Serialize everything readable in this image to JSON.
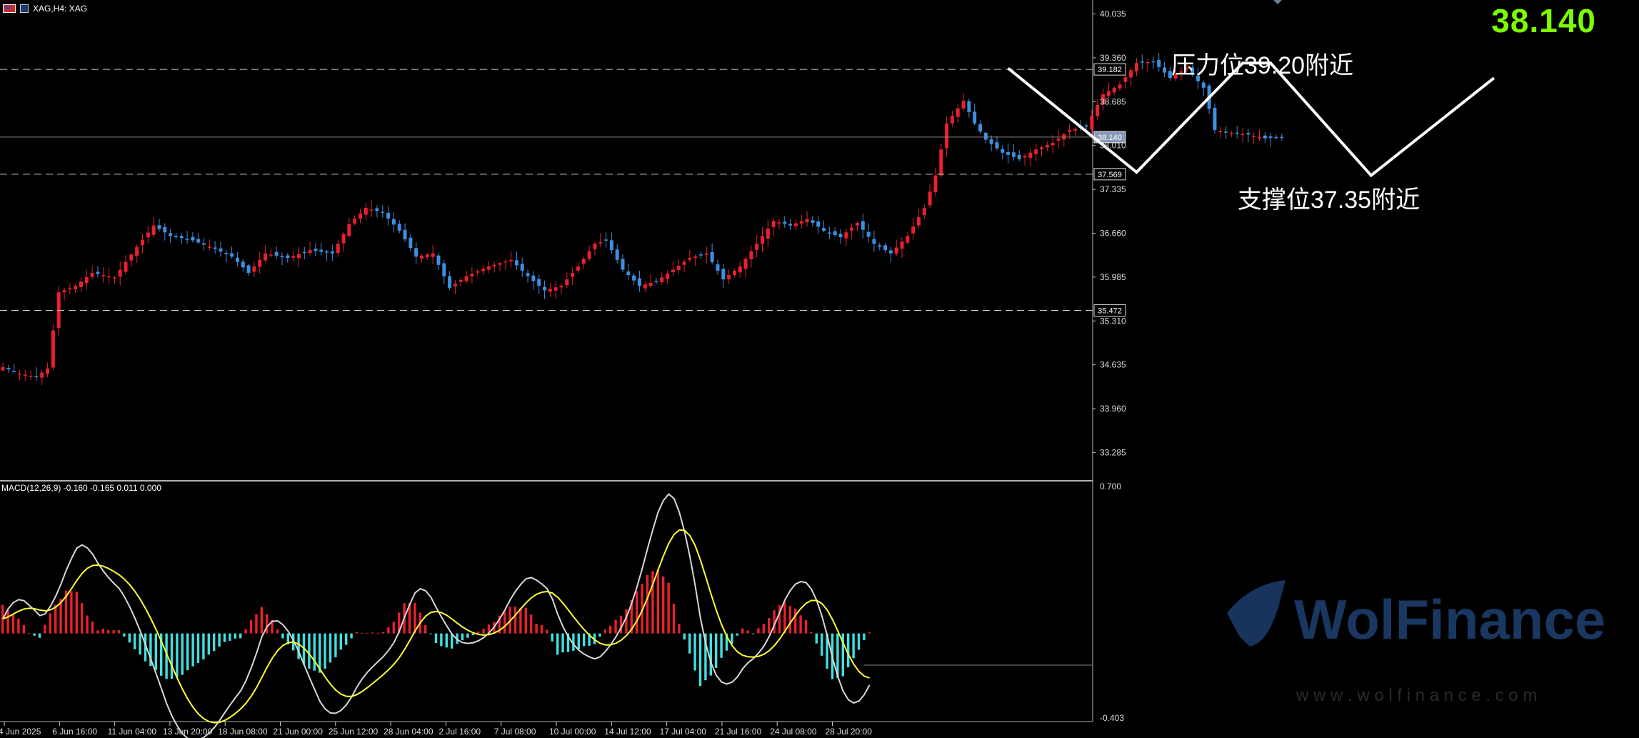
{
  "window": {
    "title": "XAG,H4:  XAG",
    "current_price_display": "38.140"
  },
  "annotations": {
    "resistance": "压力位39.20附近",
    "support": "支撑位37.35附近"
  },
  "watermark": {
    "brand": "WolFinance",
    "url": "w w w . w o l f i n a n c e . c o m"
  },
  "indicator": {
    "label": "MACD(12,26,9) -0.160 -0.165 0.011 0.000"
  },
  "colors": {
    "background": "#000000",
    "bull_candle": "#e8212b",
    "bear_candle": "#3d8fe0",
    "grid_line": "#9a9a9a",
    "price_text": "#7cfc00",
    "macd_hist_pos": "#e8212b",
    "macd_hist_neg": "#40e0e0",
    "macd_line": "#d8d8d8",
    "signal_line": "#ffff33",
    "watermark": "#1b3a66"
  },
  "chart_data": [
    {
      "type": "candlestick",
      "symbol": "XAG",
      "timeframe": "H4",
      "y_range": [
        32.85,
        40.25
      ],
      "price_axis_ticks": [
        "40.035",
        "39.360",
        "38.685",
        "38.010",
        "37.335",
        "36.660",
        "35.985",
        "35.310",
        "34.635",
        "33.960",
        "33.285"
      ],
      "price_axis_tick_values": [
        40.035,
        39.36,
        38.685,
        38.01,
        37.335,
        36.66,
        35.985,
        35.31,
        34.635,
        33.96,
        33.285
      ],
      "horizontal_levels": [
        {
          "value": 39.182,
          "label": "39.182",
          "style": "dashed"
        },
        {
          "value": 38.14,
          "label": "38.140",
          "style": "solid"
        },
        {
          "value": 37.569,
          "label": "37.569",
          "style": "dashed"
        },
        {
          "value": 35.472,
          "label": "35.472",
          "style": "dashed"
        }
      ],
      "x_tick_labels": [
        "4 Jun 2025",
        "6 Jun 16:00",
        "11 Jun 04:00",
        "13 Jun 20:00",
        "18 Jun 08:00",
        "21 Jun 00:00",
        "25 Jun 12:00",
        "28 Jun 04:00",
        "2 Jul 16:00",
        "7 Jul 08:00",
        "10 Jul 00:00",
        "14 Jul 12:00",
        "17 Jul 04:00",
        "21 Jul 16:00",
        "24 Jul 08:00",
        "28 Jul 20:00"
      ],
      "close_anchors": [
        [
          0,
          34.6
        ],
        [
          3,
          34.5
        ],
        [
          6,
          34.45
        ],
        [
          8,
          34.58
        ],
        [
          10,
          35.75
        ],
        [
          13,
          35.85
        ],
        [
          16,
          36.05
        ],
        [
          20,
          35.98
        ],
        [
          24,
          36.45
        ],
        [
          27,
          36.78
        ],
        [
          30,
          36.62
        ],
        [
          34,
          36.55
        ],
        [
          38,
          36.42
        ],
        [
          41,
          36.3
        ],
        [
          44,
          36.05
        ],
        [
          47,
          36.35
        ],
        [
          51,
          36.28
        ],
        [
          55,
          36.4
        ],
        [
          59,
          36.35
        ],
        [
          62,
          36.8
        ],
        [
          65,
          37.05
        ],
        [
          68,
          36.98
        ],
        [
          71,
          36.7
        ],
        [
          74,
          36.3
        ],
        [
          77,
          36.35
        ],
        [
          80,
          35.82
        ],
        [
          83,
          36.0
        ],
        [
          87,
          36.15
        ],
        [
          91,
          36.25
        ],
        [
          94,
          36.0
        ],
        [
          97,
          35.78
        ],
        [
          100,
          35.85
        ],
        [
          103,
          36.15
        ],
        [
          106,
          36.5
        ],
        [
          108,
          36.55
        ],
        [
          111,
          36.1
        ],
        [
          114,
          35.85
        ],
        [
          117,
          35.92
        ],
        [
          120,
          36.1
        ],
        [
          123,
          36.28
        ],
        [
          126,
          36.35
        ],
        [
          129,
          35.95
        ],
        [
          132,
          36.15
        ],
        [
          135,
          36.5
        ],
        [
          138,
          36.85
        ],
        [
          141,
          36.78
        ],
        [
          144,
          36.88
        ],
        [
          147,
          36.7
        ],
        [
          150,
          36.6
        ],
        [
          153,
          36.82
        ],
        [
          156,
          36.5
        ],
        [
          159,
          36.35
        ],
        [
          162,
          36.62
        ],
        [
          165,
          37.05
        ],
        [
          167,
          37.55
        ],
        [
          169,
          38.35
        ],
        [
          172,
          38.7
        ],
        [
          174,
          38.35
        ],
        [
          176,
          38.1
        ],
        [
          179,
          37.9
        ],
        [
          182,
          37.8
        ],
        [
          185,
          37.95
        ],
        [
          188,
          38.05
        ],
        [
          191,
          38.25
        ],
        [
          194,
          38.3
        ],
        [
          197,
          38.8
        ],
        [
          200,
          38.95
        ],
        [
          203,
          39.28
        ],
        [
          206,
          39.3
        ],
        [
          209,
          39.05
        ],
        [
          212,
          39.2
        ],
        [
          215,
          38.9
        ],
        [
          217,
          38.25
        ],
        [
          220,
          38.2
        ],
        [
          223,
          38.18
        ],
        [
          226,
          38.12
        ],
        [
          229,
          38.14
        ]
      ],
      "projection_path_points": [
        {
          "time_index": 180,
          "price": 39.2
        },
        {
          "time_index": 203,
          "price": 37.6
        },
        {
          "time_index": 222,
          "price": 39.28
        },
        {
          "time_index": 227,
          "price": 39.28
        },
        {
          "time_index": 245,
          "price": 37.55
        },
        {
          "time_index": 267,
          "price": 39.05
        }
      ]
    },
    {
      "type": "macd",
      "params": [
        12,
        26,
        9
      ],
      "y_range": [
        -0.403,
        0.7
      ],
      "axis_ticks": [
        "0.700",
        "-0.403"
      ],
      "axis_tick_values": [
        0.7,
        -0.403
      ],
      "histogram_anchors": [
        [
          0,
          0.14
        ],
        [
          3,
          0.07
        ],
        [
          5,
          0.0
        ],
        [
          7,
          -0.02
        ],
        [
          9,
          0.1
        ],
        [
          12,
          0.2
        ],
        [
          14,
          0.2
        ],
        [
          16,
          0.09
        ],
        [
          18,
          0.02
        ],
        [
          22,
          0.02
        ],
        [
          23,
          -0.02
        ],
        [
          27,
          -0.13
        ],
        [
          31,
          -0.22
        ],
        [
          34,
          -0.2
        ],
        [
          38,
          -0.12
        ],
        [
          42,
          -0.04
        ],
        [
          45,
          -0.02
        ],
        [
          47,
          0.06
        ],
        [
          49,
          0.13
        ],
        [
          51,
          0.06
        ],
        [
          53,
          -0.02
        ],
        [
          57,
          -0.15
        ],
        [
          60,
          -0.19
        ],
        [
          62,
          -0.14
        ],
        [
          65,
          -0.05
        ],
        [
          67,
          0.01
        ],
        [
          70,
          0.0
        ],
        [
          72,
          0.01
        ],
        [
          74,
          0.05
        ],
        [
          76,
          0.14
        ],
        [
          78,
          0.15
        ],
        [
          80,
          0.04
        ],
        [
          82,
          -0.05
        ],
        [
          85,
          -0.07
        ],
        [
          88,
          -0.02
        ],
        [
          91,
          0.02
        ],
        [
          93,
          0.06
        ],
        [
          96,
          0.13
        ],
        [
          99,
          0.12
        ],
        [
          101,
          0.05
        ],
        [
          103,
          0.02
        ],
        [
          105,
          -0.1
        ],
        [
          108,
          -0.08
        ],
        [
          110,
          -0.06
        ],
        [
          112,
          -0.05
        ],
        [
          114,
          0.02
        ],
        [
          116,
          0.06
        ],
        [
          118,
          0.11
        ],
        [
          120,
          0.2
        ],
        [
          122,
          0.28
        ],
        [
          124,
          0.31
        ],
        [
          126,
          0.24
        ],
        [
          128,
          0.05
        ],
        [
          130,
          -0.1
        ],
        [
          132,
          -0.25
        ],
        [
          134,
          -0.2
        ],
        [
          136,
          -0.12
        ],
        [
          138,
          -0.05
        ],
        [
          140,
          0.02
        ],
        [
          142,
          0.0
        ],
        [
          144,
          0.04
        ],
        [
          146,
          0.11
        ],
        [
          148,
          0.15
        ],
        [
          150,
          0.12
        ],
        [
          152,
          0.06
        ],
        [
          154,
          -0.05
        ],
        [
          157,
          -0.22
        ],
        [
          159,
          -0.2
        ],
        [
          161,
          -0.12
        ],
        [
          163,
          -0.03
        ],
        [
          164,
          0.01
        ]
      ],
      "note_scale": "histogram values normalized relative to the pane's axis range"
    }
  ]
}
